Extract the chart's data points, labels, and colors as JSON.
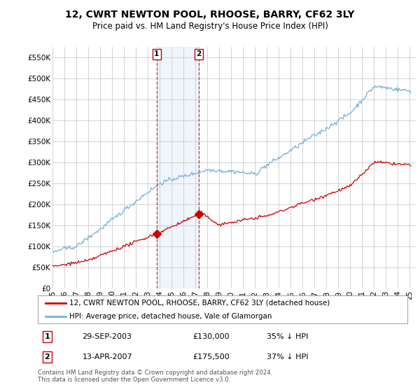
{
  "title": "12, CWRT NEWTON POOL, RHOOSE, BARRY, CF62 3LY",
  "subtitle": "Price paid vs. HM Land Registry's House Price Index (HPI)",
  "legend_line1": "12, CWRT NEWTON POOL, RHOOSE, BARRY, CF62 3LY (detached house)",
  "legend_line2": "HPI: Average price, detached house, Vale of Glamorgan",
  "transaction1": {
    "label": "1",
    "date": "29-SEP-2003",
    "price": "£130,000",
    "pct": "35% ↓ HPI",
    "year": 2003.75,
    "value": 130000
  },
  "transaction2": {
    "label": "2",
    "date": "13-APR-2007",
    "price": "£175,500",
    "pct": "37% ↓ HPI",
    "year": 2007.28,
    "value": 175500
  },
  "copyright": "Contains HM Land Registry data © Crown copyright and database right 2024.\nThis data is licensed under the Open Government Licence v3.0.",
  "ylim": [
    0,
    575000
  ],
  "xlim_start": 1995,
  "xlim_end": 2025.5,
  "red_color": "#cc0000",
  "blue_color": "#7aafd4",
  "grid_color": "#cccccc",
  "bg_color": "#ffffff",
  "shaded_color": "#ddeeff"
}
